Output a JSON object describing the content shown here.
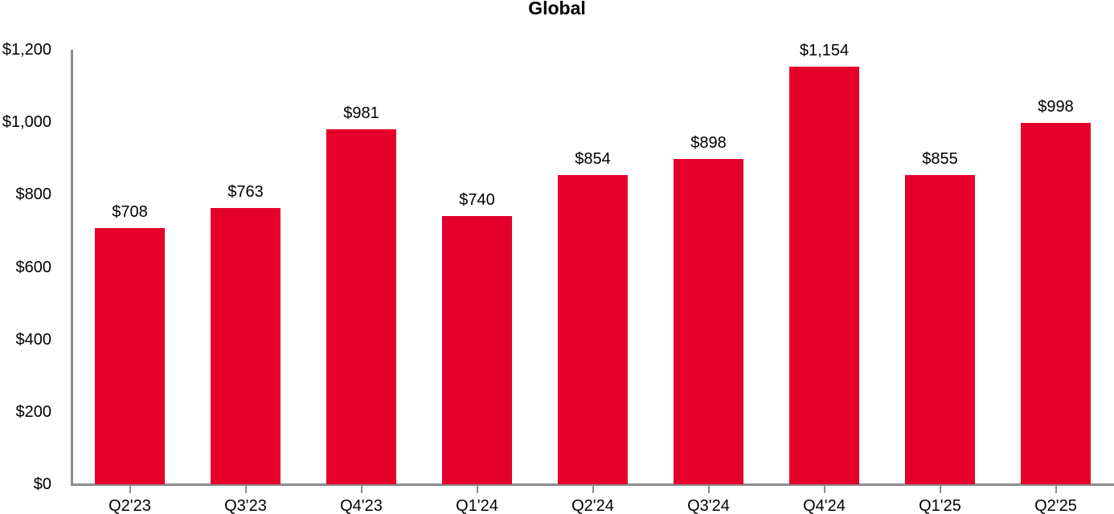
{
  "chart_data": {
    "type": "bar",
    "title": "Global",
    "categories": [
      "Q2'23",
      "Q3'23",
      "Q4'23",
      "Q1'24",
      "Q2'24",
      "Q3'24",
      "Q4'24",
      "Q1'25",
      "Q2'25"
    ],
    "values": [
      708,
      763,
      981,
      740,
      854,
      898,
      1154,
      855,
      998
    ],
    "value_labels": [
      "$708",
      "$763",
      "$981",
      "$740",
      "$854",
      "$898",
      "$1,154",
      "$855",
      "$998"
    ],
    "y_ticks": [
      0,
      200,
      400,
      600,
      800,
      1000,
      1200
    ],
    "y_tick_labels": [
      "$0",
      "$200",
      "$400",
      "$600",
      "$800",
      "$1,000",
      "$1,200"
    ],
    "ylim": [
      0,
      1200
    ],
    "xlabel": "",
    "ylabel": "",
    "grid": false,
    "legend": false,
    "bar_color": "#E4002B",
    "axis_color": "#8C8C8C",
    "text_color": "#000000"
  }
}
